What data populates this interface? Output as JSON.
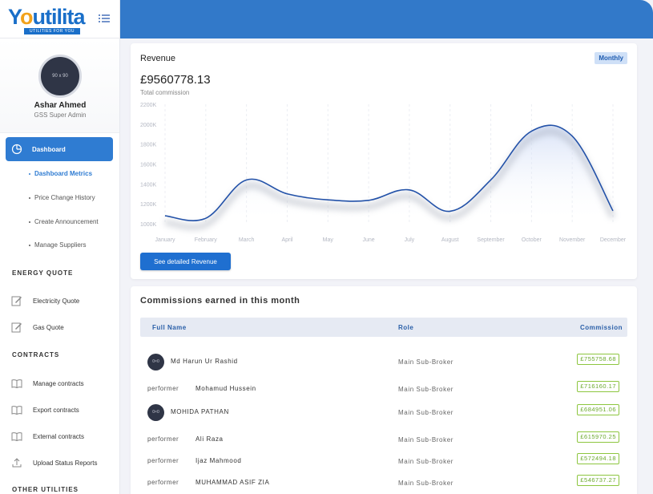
{
  "brand": {
    "logo_text": "Youtilita",
    "tagline": "UTILITIES FOR YOU"
  },
  "profile": {
    "avatar_placeholder": "90 x 90",
    "name": "Ashar Ahmed",
    "role": "GSS Super Admin"
  },
  "nav": {
    "dashboard": "Dashboard",
    "dashboard_sub": [
      "Dashboard Metrics",
      "Price Change History",
      "Create Announcement",
      "Manage Suppliers"
    ],
    "sections": {
      "energy_quote": "ENERGY QUOTE",
      "contracts": "CONTRACTS",
      "other_utilities": "OTHER UTILITIES"
    },
    "energy_items": [
      "Electricity Quote",
      "Gas Quote"
    ],
    "contract_items": [
      "Manage contracts",
      "Export contracts",
      "External contracts",
      "Upload Status Reports"
    ]
  },
  "revenue": {
    "title": "Revenue",
    "badge": "Monthly",
    "amount": "£9560778.13",
    "subtitle": "Total commission",
    "button": "See detailed Revenue"
  },
  "chart_data": {
    "type": "line",
    "categories": [
      "January",
      "February",
      "March",
      "April",
      "May",
      "June",
      "July",
      "August",
      "September",
      "October",
      "November",
      "December"
    ],
    "y_ticks": [
      "2200K",
      "2000K",
      "1800K",
      "1600K",
      "1400K",
      "1200K",
      "1000K"
    ],
    "ylim": [
      1000,
      2200
    ],
    "series": [
      {
        "values": [
          1080,
          1055,
          1440,
          1300,
          1240,
          1235,
          1340,
          1125,
          1440,
          1930,
          1880,
          1130
        ]
      }
    ],
    "line_color": "#2251a8"
  },
  "commissions": {
    "title": "Commissions earned in this month",
    "headers": {
      "name": "Full Name",
      "role": "Role",
      "commission": "Commission"
    },
    "rows": [
      {
        "avatar": "circle",
        "avatar_text": "0×0",
        "name": "Md Harun Ur Rashid",
        "role": "Main Sub-Broker",
        "commission": "£755758.68"
      },
      {
        "avatar": "alt",
        "avatar_text": "performer",
        "name": "Mohamud Hussein",
        "role": "Main Sub-Broker",
        "commission": "£716160.17"
      },
      {
        "avatar": "circle",
        "avatar_text": "0×0",
        "name": "MOHIDA PATHAN",
        "role": "Main Sub-Broker",
        "commission": "£684951.06"
      },
      {
        "avatar": "alt",
        "avatar_text": "performer",
        "name": "Ali Raza",
        "role": "Main Sub-Broker",
        "commission": "£615970.25"
      },
      {
        "avatar": "alt",
        "avatar_text": "performer",
        "name": "Ijaz Mahmood",
        "role": "Main Sub-Broker",
        "commission": "£572494.18"
      },
      {
        "avatar": "alt",
        "avatar_text": "performer",
        "name": "MUHAMMAD ASIF ZIA",
        "role": "Main Sub-Broker",
        "commission": "£546737.27"
      }
    ]
  },
  "colors": {
    "accent": "#2f7cd2",
    "topbar": "#3279c9",
    "commission_green": "#6aa82b"
  }
}
